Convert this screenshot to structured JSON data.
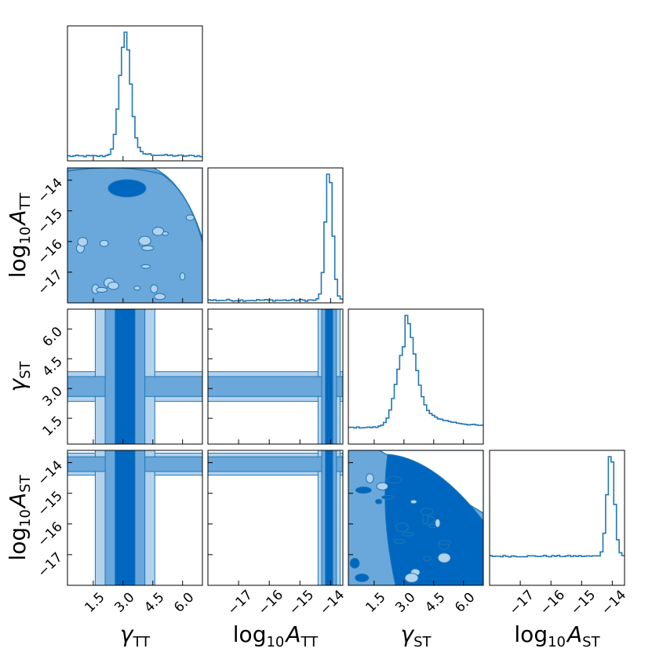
{
  "chart_data": {
    "type": "corner",
    "parameters": [
      {
        "key": "gamma_TT",
        "label_main": "γ",
        "label_sub": "TT",
        "range": [
          0.2,
          7.0
        ],
        "ticks": [
          1.5,
          3.0,
          4.5,
          6.0
        ],
        "tick_labels": [
          "1.5",
          "3.0",
          "4.5",
          "6.0"
        ]
      },
      {
        "key": "log10_A_TT",
        "label_main": "log",
        "label_mid": "10",
        "label_var": "A",
        "label_sub": "TT",
        "range": [
          -18.0,
          -13.6
        ],
        "ticks": [
          -17,
          -16,
          -15,
          -14
        ],
        "tick_labels": [
          "−17",
          "−16",
          "−15",
          "−14"
        ]
      },
      {
        "key": "gamma_ST",
        "label_main": "γ",
        "label_sub": "ST",
        "range": [
          0.2,
          7.0
        ],
        "ticks": [
          1.5,
          3.0,
          4.5,
          6.0
        ],
        "tick_labels": [
          "1.5",
          "3.0",
          "4.5",
          "6.0"
        ]
      },
      {
        "key": "log10_A_ST",
        "label_main": "log",
        "label_mid": "10",
        "label_var": "A",
        "label_sub": "ST",
        "range": [
          -18.0,
          -13.6
        ],
        "ticks": [
          -17,
          -16,
          -15,
          -14
        ],
        "tick_labels": [
          "−17",
          "−16",
          "−15",
          "−14"
        ]
      }
    ],
    "histograms": [
      {
        "param": "gamma_TT",
        "peak": 3.1,
        "width": 0.28,
        "floor": 0.04
      },
      {
        "param": "log10_A_TT",
        "peak": -14.05,
        "width": 0.12,
        "floor": 0.02
      },
      {
        "param": "gamma_ST",
        "peak": 3.1,
        "width": 0.45,
        "floor": 0.2
      },
      {
        "param": "log10_A_ST",
        "peak": -14.05,
        "width": 0.12,
        "floor": 0.28
      }
    ],
    "colors": {
      "line": "#1f77b4",
      "contour_dark": "#0067c0",
      "contour_mid": "#6aa7da",
      "contour_light": "#b3d2ee"
    },
    "grid": false
  }
}
